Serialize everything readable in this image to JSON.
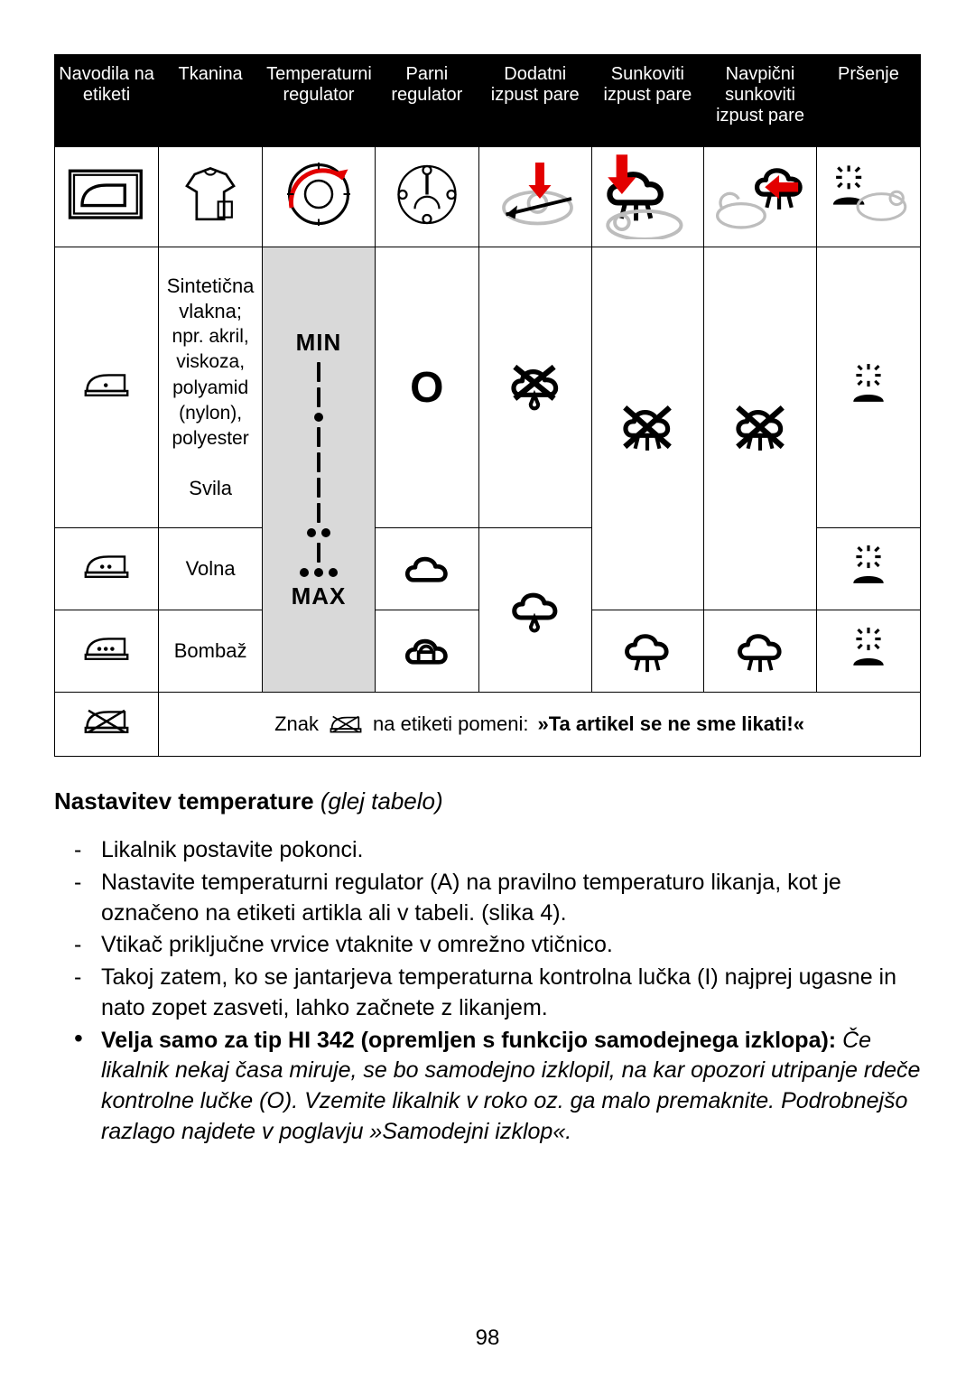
{
  "colors": {
    "headerBg": "#000000",
    "headerFg": "#ffffff",
    "tempCol": "#d9d9d9",
    "red": "#e30000",
    "grey": "#bdbdbd"
  },
  "headers": [
    "Navodila na etiketi",
    "Tkanina",
    "Temperaturni regulator",
    "Parni regulator",
    "Dodatni izpust pare",
    "Sunkoviti izpust pare",
    "Navpični sunkoviti izpust pare",
    "Pršenje"
  ],
  "rows": {
    "synthetic": {
      "fabricMain": "Sintetična vlakna;",
      "fabricSub": "npr. akril, viskoza, polyamid (nylon), polyester",
      "fabricExtra": "Svila",
      "tempLabel": "MIN",
      "steamReg": "O"
    },
    "wool": {
      "fabric": "Volna"
    },
    "cotton": {
      "fabric": "Bombaž",
      "tempLabel": "MAX"
    }
  },
  "noteRow": {
    "before": "Znak",
    "after": "na etiketi pomeni:",
    "bold": "»Ta artikel se ne sme likati!«"
  },
  "section": {
    "titleBold": "Nastavitev temperature",
    "titleItalic": "(glej tabelo)",
    "items": [
      {
        "marker": "dash",
        "html": "Likalnik postavite pokonci."
      },
      {
        "marker": "dash",
        "html": "Nastavite temperaturni regulator (A) na pravilno temperaturo likanja, kot je označeno na etiketi artikla ali v tabeli. (slika 4)."
      },
      {
        "marker": "dash",
        "html": "Vtikač priključne vrvice vtaknite v omrežno vtičnico."
      },
      {
        "marker": "dash",
        "html": "Takoj zatem, ko se jantarjeva temperaturna kontrolna lučka (I) najprej ugasne in nato zopet zasveti, lahko začnete z likanjem."
      },
      {
        "marker": "bullet",
        "html": "<b>Velja samo za tip HI 342 (opremljen s funkcijo samodejnega izklopa):</b> <i>Če likalnik nekaj časa miruje, se bo samodejno izklopil, na kar opozori utripanje rdeče kontrolne lučke (O). Vzemite likalnik v roko oz. ga malo premaknite. Podrobnejšo razlago najdete v poglavju »Samodejni izklop«.</i>"
      }
    ]
  },
  "pageNumber": "98"
}
